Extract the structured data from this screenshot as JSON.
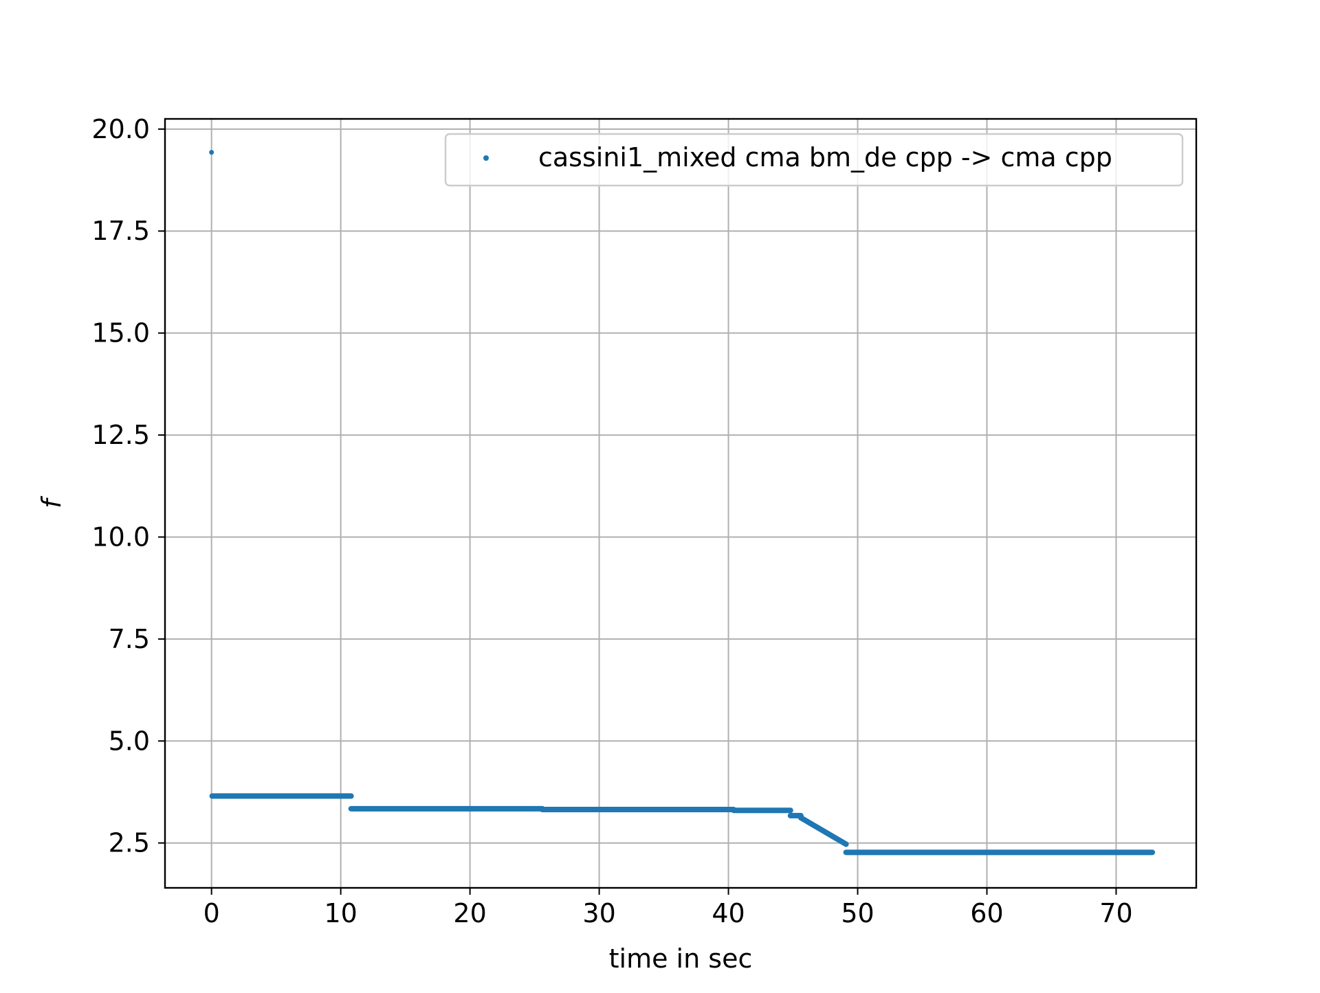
{
  "chart_data": {
    "type": "scatter",
    "title": "",
    "xlabel": "time in sec",
    "ylabel": "f",
    "xlim": [
      -3.6,
      76.2
    ],
    "ylim": [
      1.4,
      20.25
    ],
    "x_ticks": [
      0,
      10,
      20,
      30,
      40,
      50,
      60,
      70
    ],
    "x_tick_labels": [
      "0",
      "10",
      "20",
      "30",
      "40",
      "50",
      "60",
      "70"
    ],
    "y_ticks": [
      2.5,
      5.0,
      7.5,
      10.0,
      12.5,
      15.0,
      17.5,
      20.0
    ],
    "y_tick_labels": [
      "2.5",
      "5.0",
      "7.5",
      "10.0",
      "12.5",
      "15.0",
      "17.5",
      "20.0"
    ],
    "grid": true,
    "legend_position": "top-right",
    "colors": {
      "series": "#1f77b4",
      "grid": "#b0b0b0",
      "axes": "#000000",
      "legend_border": "#cccccc"
    },
    "series": [
      {
        "name": "cassini1_mixed cma bm_de cpp -> cma cpp",
        "segments": [
          {
            "x": [
              0.0,
              0.0
            ],
            "y": [
              19.43,
              19.43
            ]
          },
          {
            "x": [
              0.05,
              10.8
            ],
            "y": [
              3.65,
              3.65
            ]
          },
          {
            "x": [
              10.8,
              25.6
            ],
            "y": [
              3.34,
              3.34
            ]
          },
          {
            "x": [
              25.6,
              40.4
            ],
            "y": [
              3.32,
              3.32
            ]
          },
          {
            "x": [
              40.4,
              44.8
            ],
            "y": [
              3.3,
              3.3
            ]
          },
          {
            "x": [
              44.8,
              45.6
            ],
            "y": [
              3.17,
              3.17
            ]
          },
          {
            "x": [
              45.6,
              49.1
            ],
            "y": [
              3.12,
              2.47
            ]
          },
          {
            "x": [
              49.1,
              72.8
            ],
            "y": [
              2.27,
              2.27
            ]
          }
        ]
      }
    ]
  }
}
